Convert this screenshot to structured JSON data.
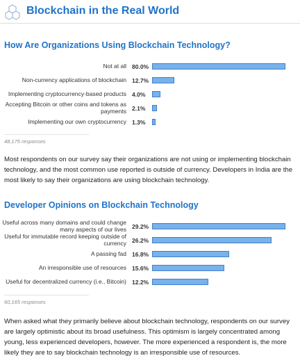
{
  "header": {
    "title": "Blockchain in the Real World"
  },
  "chart_data": [
    {
      "type": "bar",
      "title": "How Are Organizations Using Blockchain Technology?",
      "categories": [
        "Not at all",
        "Non-currency applications of blockchain",
        "Implementing cryptocurrency-based products",
        "Accepting Bitcoin or other coins and tokens as payments",
        "Implementing our own cryptocurrency"
      ],
      "values": [
        80.0,
        12.7,
        4.0,
        2.1,
        1.3
      ],
      "value_labels": [
        "80.0%",
        "12.7%",
        "4.0%",
        "2.1%",
        "1.3%"
      ],
      "color": "#79b1ea",
      "responses": "48,175 responses"
    },
    {
      "type": "bar",
      "title": "Developer Opinions on Blockchain Technology",
      "categories": [
        "Useful across many domains and could change many aspects of our lives",
        "Useful for immutable record keeping outside of currency",
        "A passing fad",
        "An irresponsible use of resources",
        "Useful for decentralized currency (i.e., Bitcoin)"
      ],
      "values": [
        29.2,
        26.2,
        16.8,
        15.6,
        12.2
      ],
      "value_labels": [
        "29.2%",
        "26.2%",
        "16.8%",
        "15.6%",
        "12.2%"
      ],
      "color": "#79b1ea",
      "responses": "60,165 responses"
    }
  ],
  "paragraphs": [
    "Most respondents on our survey say their organizations are not using or implementing blockchain technology, and the most common use reported is outside of currency. Developers in India are the most likely to say their organizations are using blockchain technology.",
    "When asked what they primarily believe about blockchain technology, respondents on our survey are largely optimistic about its broad usefulness. This optimism is largely concentrated among young, less experienced developers, however. The more experienced a respondent is, the more likely they are to say blockchain technology is an irresponsible use of resources."
  ]
}
